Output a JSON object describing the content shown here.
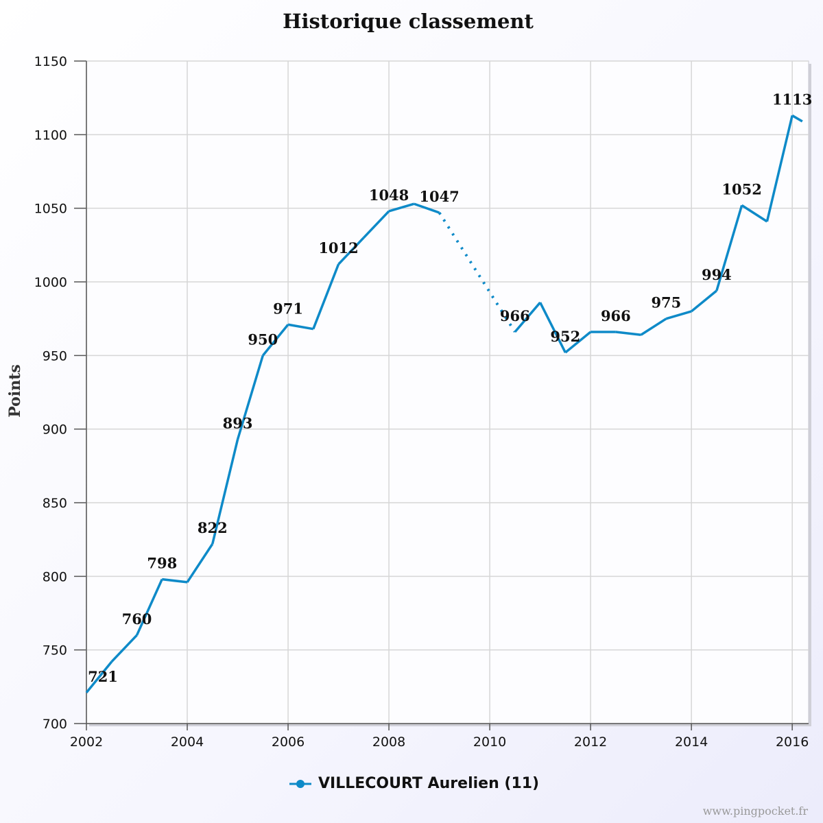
{
  "chart_data": {
    "type": "line",
    "title": "Historique classement",
    "ylabel": "Points",
    "xlabel": "",
    "xlim": [
      2002,
      2016.27
    ],
    "ylim": [
      700,
      1150
    ],
    "xticks": [
      "2002",
      "2004",
      "2006",
      "2008",
      "2010",
      "2012",
      "2014",
      "2016"
    ],
    "yticks": [
      "700",
      "750",
      "800",
      "850",
      "900",
      "950",
      "1000",
      "1050",
      "1100",
      "1150"
    ],
    "grid": true,
    "legend_position": "bottom",
    "color": "#0e8ac8",
    "series": [
      {
        "name": "VILLECOURT Aurelien (11)",
        "points": [
          {
            "x": 2002.0,
            "y": 721,
            "label": "721"
          },
          {
            "x": 2002.5,
            "y": 742,
            "label": null
          },
          {
            "x": 2003.0,
            "y": 760,
            "label": "760"
          },
          {
            "x": 2003.5,
            "y": 798,
            "label": "798"
          },
          {
            "x": 2004.0,
            "y": 796,
            "label": null
          },
          {
            "x": 2004.5,
            "y": 822,
            "label": "822"
          },
          {
            "x": 2005.0,
            "y": 893,
            "label": "893"
          },
          {
            "x": 2005.5,
            "y": 950,
            "label": "950"
          },
          {
            "x": 2006.0,
            "y": 971,
            "label": "971"
          },
          {
            "x": 2006.5,
            "y": 968,
            "label": null
          },
          {
            "x": 2007.0,
            "y": 1012,
            "label": "1012"
          },
          {
            "x": 2007.5,
            "y": 1030,
            "label": null
          },
          {
            "x": 2008.0,
            "y": 1048,
            "label": "1048"
          },
          {
            "x": 2008.5,
            "y": 1053,
            "label": null
          },
          {
            "x": 2009.0,
            "y": 1047,
            "label": "1047",
            "dotted_to_next": true
          },
          {
            "x": 2010.5,
            "y": 966,
            "label": "966"
          },
          {
            "x": 2011.0,
            "y": 986,
            "label": null
          },
          {
            "x": 2011.5,
            "y": 952,
            "label": "952"
          },
          {
            "x": 2012.0,
            "y": 966,
            "label": null
          },
          {
            "x": 2012.5,
            "y": 966,
            "label": "966"
          },
          {
            "x": 2013.0,
            "y": 964,
            "label": null
          },
          {
            "x": 2013.5,
            "y": 975,
            "label": "975"
          },
          {
            "x": 2014.0,
            "y": 980,
            "label": null
          },
          {
            "x": 2014.5,
            "y": 994,
            "label": "994"
          },
          {
            "x": 2015.0,
            "y": 1052,
            "label": "1052"
          },
          {
            "x": 2015.5,
            "y": 1041,
            "label": null
          },
          {
            "x": 2016.0,
            "y": 1113,
            "label": "1113"
          },
          {
            "x": 2016.2,
            "y": 1109,
            "label": null
          }
        ]
      }
    ]
  },
  "credit": "www.pingpocket.fr"
}
